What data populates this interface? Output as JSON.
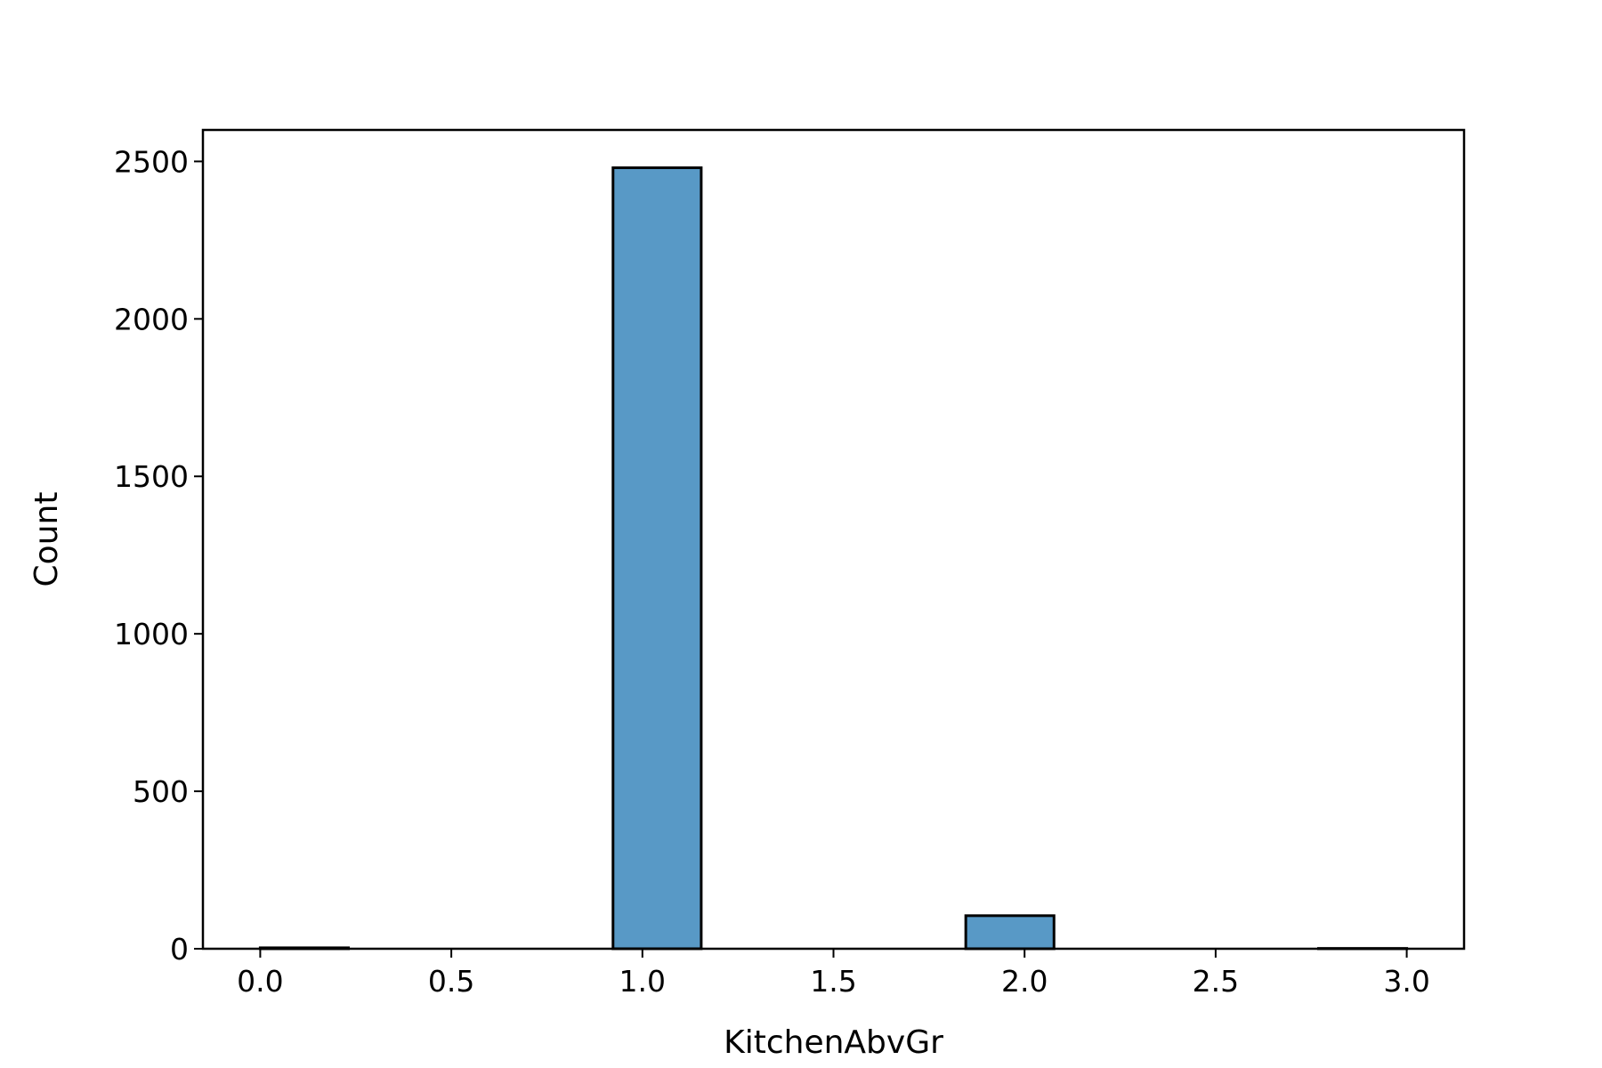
{
  "chart_data": {
    "type": "bar",
    "title": "",
    "xlabel": "KitchenAbvGr",
    "ylabel": "Count",
    "xlim": [
      -0.15,
      3.15
    ],
    "ylim": [
      0,
      2600
    ],
    "xticks": [
      "0.0",
      "0.5",
      "1.0",
      "1.5",
      "2.0",
      "2.5",
      "3.0"
    ],
    "xtick_values": [
      0.0,
      0.5,
      1.0,
      1.5,
      2.0,
      2.5,
      3.0
    ],
    "yticks": [
      "0",
      "500",
      "1000",
      "1500",
      "2000",
      "2500"
    ],
    "ytick_values": [
      0,
      500,
      1000,
      1500,
      2000,
      2500
    ],
    "bin_width": 0.2308,
    "bins": [
      {
        "x_start": 0.0,
        "count": 3
      },
      {
        "x_start": 0.2308,
        "count": 0
      },
      {
        "x_start": 0.4615,
        "count": 0
      },
      {
        "x_start": 0.6923,
        "count": 0
      },
      {
        "x_start": 0.9231,
        "count": 2480
      },
      {
        "x_start": 1.1538,
        "count": 0
      },
      {
        "x_start": 1.3846,
        "count": 0
      },
      {
        "x_start": 1.6154,
        "count": 0
      },
      {
        "x_start": 1.8462,
        "count": 105
      },
      {
        "x_start": 2.0769,
        "count": 0
      },
      {
        "x_start": 2.3077,
        "count": 0
      },
      {
        "x_start": 2.5385,
        "count": 0
      },
      {
        "x_start": 2.7692,
        "count": 1
      }
    ],
    "bar_color": "#5899c6",
    "bar_edge_color": "#000000",
    "grid": false,
    "legend": "none"
  }
}
